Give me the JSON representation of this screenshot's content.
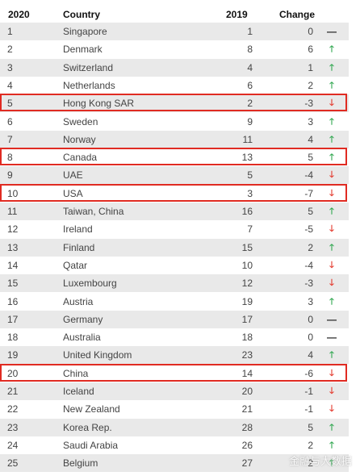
{
  "table": {
    "headers": {
      "rank_2020": "2020",
      "country": "Country",
      "rank_2019": "2019",
      "change": "Change"
    },
    "rows": [
      {
        "rank_2020": "1",
        "country": "Singapore",
        "rank_2019": "1",
        "change": "0",
        "trend": "flat",
        "highlighted": false
      },
      {
        "rank_2020": "2",
        "country": "Denmark",
        "rank_2019": "8",
        "change": "6",
        "trend": "up",
        "highlighted": false
      },
      {
        "rank_2020": "3",
        "country": "Switzerland",
        "rank_2019": "4",
        "change": "1",
        "trend": "up",
        "highlighted": false
      },
      {
        "rank_2020": "4",
        "country": "Netherlands",
        "rank_2019": "6",
        "change": "2",
        "trend": "up",
        "highlighted": false
      },
      {
        "rank_2020": "5",
        "country": "Hong Kong SAR",
        "rank_2019": "2",
        "change": "-3",
        "trend": "down",
        "highlighted": true
      },
      {
        "rank_2020": "6",
        "country": "Sweden",
        "rank_2019": "9",
        "change": "3",
        "trend": "up",
        "highlighted": false
      },
      {
        "rank_2020": "7",
        "country": "Norway",
        "rank_2019": "11",
        "change": "4",
        "trend": "up",
        "highlighted": false
      },
      {
        "rank_2020": "8",
        "country": "Canada",
        "rank_2019": "13",
        "change": "5",
        "trend": "up",
        "highlighted": true
      },
      {
        "rank_2020": "9",
        "country": "UAE",
        "rank_2019": "5",
        "change": "-4",
        "trend": "down",
        "highlighted": false
      },
      {
        "rank_2020": "10",
        "country": "USA",
        "rank_2019": "3",
        "change": "-7",
        "trend": "down",
        "highlighted": true
      },
      {
        "rank_2020": "11",
        "country": "Taiwan, China",
        "rank_2019": "16",
        "change": "5",
        "trend": "up",
        "highlighted": false
      },
      {
        "rank_2020": "12",
        "country": "Ireland",
        "rank_2019": "7",
        "change": "-5",
        "trend": "down",
        "highlighted": false
      },
      {
        "rank_2020": "13",
        "country": "Finland",
        "rank_2019": "15",
        "change": "2",
        "trend": "up",
        "highlighted": false
      },
      {
        "rank_2020": "14",
        "country": "Qatar",
        "rank_2019": "10",
        "change": "-4",
        "trend": "down",
        "highlighted": false
      },
      {
        "rank_2020": "15",
        "country": "Luxembourg",
        "rank_2019": "12",
        "change": "-3",
        "trend": "down",
        "highlighted": false
      },
      {
        "rank_2020": "16",
        "country": "Austria",
        "rank_2019": "19",
        "change": "3",
        "trend": "up",
        "highlighted": false
      },
      {
        "rank_2020": "17",
        "country": "Germany",
        "rank_2019": "17",
        "change": "0",
        "trend": "flat",
        "highlighted": false
      },
      {
        "rank_2020": "18",
        "country": "Australia",
        "rank_2019": "18",
        "change": "0",
        "trend": "flat",
        "highlighted": false
      },
      {
        "rank_2020": "19",
        "country": "United Kingdom",
        "rank_2019": "23",
        "change": "4",
        "trend": "up",
        "highlighted": false
      },
      {
        "rank_2020": "20",
        "country": "China",
        "rank_2019": "14",
        "change": "-6",
        "trend": "down",
        "highlighted": true
      },
      {
        "rank_2020": "21",
        "country": "Iceland",
        "rank_2019": "20",
        "change": "-1",
        "trend": "down",
        "highlighted": false
      },
      {
        "rank_2020": "22",
        "country": "New Zealand",
        "rank_2019": "21",
        "change": "-1",
        "trend": "down",
        "highlighted": false
      },
      {
        "rank_2020": "23",
        "country": "Korea Rep.",
        "rank_2019": "28",
        "change": "5",
        "trend": "up",
        "highlighted": false
      },
      {
        "rank_2020": "24",
        "country": "Saudi Arabia",
        "rank_2019": "26",
        "change": "2",
        "trend": "up",
        "highlighted": false
      },
      {
        "rank_2020": "25",
        "country": "Belgium",
        "rank_2019": "27",
        "change": "2",
        "trend": "up",
        "highlighted": false
      }
    ]
  },
  "symbols": {
    "up": "🡑",
    "down": "🡓",
    "flat": "—"
  },
  "colors": {
    "shade": "#e9e9e9",
    "highlight": "#e02b22",
    "up": "#33a852",
    "down": "#e33b2f",
    "flat": "#222222"
  },
  "watermark": {
    "text": "金融与大数据"
  }
}
